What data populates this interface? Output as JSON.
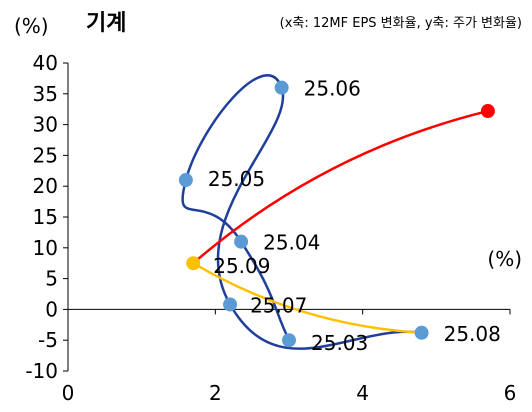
{
  "chart_data": {
    "type": "scatter",
    "title": "기계",
    "subtitle": "(x축: 12MF EPS 변화율, y축: 주가 변화율)",
    "y_unit": "(%)",
    "x_unit": "(%)",
    "xlim": [
      0,
      6
    ],
    "ylim": [
      -10,
      40
    ],
    "x_ticks": [
      0,
      2,
      4,
      6
    ],
    "y_ticks": [
      40,
      35,
      30,
      25,
      20,
      15,
      10,
      5,
      0,
      -5,
      -10
    ],
    "grid": false,
    "colors": {
      "blue_line": "#1f3f9a",
      "blue_point": "#5b9bd5",
      "orange": "#ffc000",
      "red": "#ff0000"
    },
    "series": [
      {
        "line_color": "blue_line",
        "marker_color": "blue_point",
        "points": [
          {
            "x": 3.0,
            "y": -5,
            "label": "25.03"
          },
          {
            "x": 2.35,
            "y": 11,
            "label": "25.04"
          },
          {
            "x": 1.6,
            "y": 21,
            "label": "25.05"
          },
          {
            "x": 2.9,
            "y": 36,
            "label": "25.06"
          },
          {
            "x": 2.2,
            "y": 0.8,
            "label": "25.07"
          },
          {
            "x": 4.8,
            "y": -3.8,
            "label": "25.08"
          }
        ]
      },
      {
        "line_color": "orange",
        "marker_color": "orange",
        "points": [
          {
            "x": 4.8,
            "y": -3.8,
            "label": ""
          },
          {
            "x": 1.7,
            "y": 7.5,
            "label": "25.09"
          }
        ]
      },
      {
        "line_color": "red",
        "marker_color": "red",
        "points": [
          {
            "x": 1.7,
            "y": 7.5,
            "label": ""
          },
          {
            "x": 5.7,
            "y": 32.2,
            "label": ""
          }
        ]
      }
    ]
  }
}
